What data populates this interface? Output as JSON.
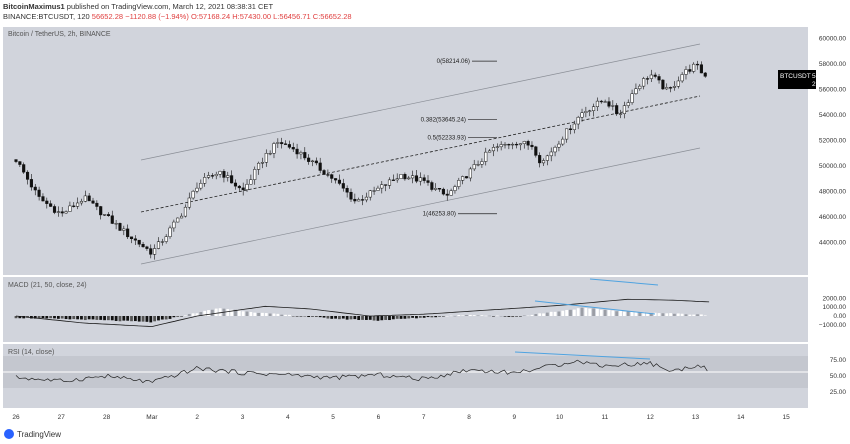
{
  "header": {
    "author": "BitcoinMaximus1",
    "published_text": "published on TradingView.com, March 12, 2021 08:38:31 CET",
    "symbol_line": "BINANCE:BTCUSDT, 120",
    "ohlc_value": "56652.28",
    "ohlc_change": "−1120.88 (−1.94%)",
    "ohlc_o": "O:57168.24",
    "ohlc_h": "H:57430.00",
    "ohlc_l": "L:56456.71",
    "ohlc_c": "C:56652.28"
  },
  "colors": {
    "panel_bg": "#d1d4dc",
    "candle": "#111111",
    "channel": "#8a8e96",
    "dashed": "#222222",
    "macd_line": "#1a1a1a",
    "divergence": "#4fa3e0",
    "price_tag_bg": "#000000",
    "change_red": "#e04040"
  },
  "price_panel": {
    "legend": "Bitcoin / TetherUS, 2h, BINANCE",
    "price_tag": "56652.28",
    "price_tag_symbol": "BTCUSDT",
    "countdown": "21:31",
    "axis_labels": [
      "60000.00",
      "58000.00",
      "56000.00",
      "54000.00",
      "52000.00",
      "50000.00",
      "48000.00",
      "46000.00",
      "44000.00"
    ],
    "fib_levels": [
      {
        "label": "0(58214.06)",
        "price": 58214.06
      },
      {
        "label": "0.382(53645.24)",
        "price": 53645.24
      },
      {
        "label": "0.5(52233.93)",
        "price": 52233.93
      },
      {
        "label": "1(46253.80)",
        "price": 46253.8
      }
    ]
  },
  "macd_panel": {
    "legend": "MACD (21, 50, close, 24)",
    "axis_labels": [
      "2000.00",
      "1000.00",
      "0.00",
      "−1000.00"
    ]
  },
  "rsi_panel": {
    "legend": "RSI (14, close)",
    "axis_labels": [
      "75.00",
      "50.00",
      "25.00"
    ]
  },
  "x_axis": {
    "labels": [
      "26",
      "27",
      "28",
      "Mar",
      "2",
      "3",
      "4",
      "5",
      "6",
      "7",
      "8",
      "9",
      "10",
      "11",
      "12",
      "13",
      "14",
      "15"
    ]
  },
  "footer": {
    "brand": "TradingView"
  },
  "chart_data": {
    "type": "candlestick",
    "title": "Bitcoin / TetherUS, 2h, BINANCE",
    "xlabel": "",
    "ylabel": "",
    "x_categories": [
      "26",
      "27",
      "28",
      "Mar",
      "2",
      "3",
      "4",
      "5",
      "6",
      "7",
      "8",
      "9",
      "10",
      "11",
      "12",
      "13",
      "14",
      "15"
    ],
    "ylim": [
      42000,
      60500
    ],
    "grid": false,
    "price_path_keypoints": [
      {
        "day": 0.0,
        "price": 50500
      },
      {
        "day": 0.5,
        "price": 47500
      },
      {
        "day": 1.0,
        "price": 46200
      },
      {
        "day": 1.5,
        "price": 47500
      },
      {
        "day": 2.0,
        "price": 46000
      },
      {
        "day": 2.5,
        "price": 44500
      },
      {
        "day": 3.0,
        "price": 43200
      },
      {
        "day": 3.3,
        "price": 44500
      },
      {
        "day": 3.7,
        "price": 46500
      },
      {
        "day": 4.0,
        "price": 48500
      },
      {
        "day": 4.5,
        "price": 49600
      },
      {
        "day": 5.0,
        "price": 48000
      },
      {
        "day": 5.5,
        "price": 50800
      },
      {
        "day": 5.8,
        "price": 51900
      },
      {
        "day": 6.2,
        "price": 51200
      },
      {
        "day": 6.7,
        "price": 49800
      },
      {
        "day": 7.0,
        "price": 49000
      },
      {
        "day": 7.5,
        "price": 47200
      },
      {
        "day": 8.0,
        "price": 48200
      },
      {
        "day": 8.5,
        "price": 49300
      },
      {
        "day": 9.0,
        "price": 48800
      },
      {
        "day": 9.5,
        "price": 47600
      },
      {
        "day": 10.0,
        "price": 49500
      },
      {
        "day": 10.5,
        "price": 51300
      },
      {
        "day": 11.0,
        "price": 51900
      },
      {
        "day": 11.4,
        "price": 51600
      },
      {
        "day": 11.6,
        "price": 50200
      },
      {
        "day": 12.0,
        "price": 52000
      },
      {
        "day": 12.5,
        "price": 54200
      },
      {
        "day": 13.0,
        "price": 55200
      },
      {
        "day": 13.3,
        "price": 54000
      },
      {
        "day": 13.7,
        "price": 56200
      },
      {
        "day": 14.0,
        "price": 57200
      },
      {
        "day": 14.4,
        "price": 55800
      },
      {
        "day": 14.7,
        "price": 57200
      },
      {
        "day": 15.0,
        "price": 57900
      },
      {
        "day": 15.3,
        "price": 56700
      }
    ],
    "macd_histogram_keypoints": [
      {
        "day": 0.0,
        "value": -200
      },
      {
        "day": 1.5,
        "value": -400
      },
      {
        "day": 3.0,
        "value": -700
      },
      {
        "day": 4.5,
        "value": 900
      },
      {
        "day": 5.5,
        "value": 300
      },
      {
        "day": 7.0,
        "value": -300
      },
      {
        "day": 8.0,
        "value": -500
      },
      {
        "day": 10.0,
        "value": 150
      },
      {
        "day": 11.0,
        "value": -100
      },
      {
        "day": 12.5,
        "value": 900
      },
      {
        "day": 13.5,
        "value": 500
      },
      {
        "day": 15.3,
        "value": 100
      }
    ],
    "macd_line_keypoints": [
      {
        "day": 0.0,
        "value": 0
      },
      {
        "day": 1.5,
        "value": -800
      },
      {
        "day": 3.0,
        "value": -1200
      },
      {
        "day": 4.0,
        "value": 0
      },
      {
        "day": 5.5,
        "value": 1100
      },
      {
        "day": 6.5,
        "value": 800
      },
      {
        "day": 7.8,
        "value": 0
      },
      {
        "day": 9.0,
        "value": 200
      },
      {
        "day": 10.5,
        "value": 700
      },
      {
        "day": 12.0,
        "value": 1200
      },
      {
        "day": 13.5,
        "value": 1900
      },
      {
        "day": 14.5,
        "value": 1800
      },
      {
        "day": 15.3,
        "value": 1600
      }
    ],
    "rsi_keypoints": [
      {
        "day": 0.0,
        "value": 48
      },
      {
        "day": 1.0,
        "value": 42
      },
      {
        "day": 2.0,
        "value": 50
      },
      {
        "day": 3.0,
        "value": 40
      },
      {
        "day": 4.0,
        "value": 62
      },
      {
        "day": 5.0,
        "value": 55
      },
      {
        "day": 6.0,
        "value": 52
      },
      {
        "day": 7.0,
        "value": 47
      },
      {
        "day": 8.0,
        "value": 52
      },
      {
        "day": 9.0,
        "value": 45
      },
      {
        "day": 10.0,
        "value": 60
      },
      {
        "day": 11.0,
        "value": 55
      },
      {
        "day": 12.0,
        "value": 68
      },
      {
        "day": 12.3,
        "value": 74
      },
      {
        "day": 13.0,
        "value": 66
      },
      {
        "day": 14.0,
        "value": 70
      },
      {
        "day": 14.5,
        "value": 57
      },
      {
        "day": 15.0,
        "value": 67
      },
      {
        "day": 15.3,
        "value": 60
      }
    ]
  }
}
